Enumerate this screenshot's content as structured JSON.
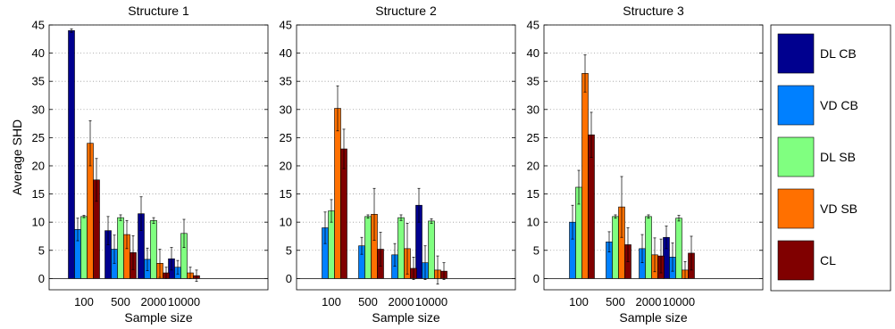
{
  "chart_data": {
    "type": "bar",
    "ylabel": "Average SHD",
    "xlabel": "Sample size",
    "ylim": [
      -2,
      45
    ],
    "yticks": [
      0,
      5,
      10,
      15,
      20,
      25,
      30,
      35,
      40,
      45
    ],
    "categories": [
      "100",
      "500",
      "2000",
      "10000"
    ],
    "grid": "horizontal dotted",
    "legend_placement": "right",
    "series": [
      {
        "name": "DL CB",
        "color": "#00008f"
      },
      {
        "name": "VD CB",
        "color": "#0080ff"
      },
      {
        "name": "DL SB",
        "color": "#80ff80"
      },
      {
        "name": "VD SB",
        "color": "#ff7000"
      },
      {
        "name": "CL",
        "color": "#800000"
      }
    ],
    "panels": [
      {
        "title": "Structure 1",
        "values": [
          [
            44,
            8.5,
            11.5,
            3.5
          ],
          [
            8.7,
            5.2,
            3.4,
            2
          ],
          [
            11,
            10.8,
            10.3,
            8
          ],
          [
            24,
            7.8,
            2.7,
            1
          ],
          [
            17.5,
            4.6,
            1,
            0.5
          ]
        ],
        "errors": [
          [
            0.3,
            2.5,
            3.0,
            2.0
          ],
          [
            2.0,
            2.5,
            2.0,
            1.2
          ],
          [
            0.2,
            0.5,
            0.5,
            2.5
          ],
          [
            4.0,
            2.5,
            2.5,
            1.0
          ],
          [
            3.8,
            3.0,
            1.0,
            1.0
          ]
        ]
      },
      {
        "title": "Structure 2",
        "values": [
          [
            0,
            0,
            0,
            13
          ],
          [
            9,
            5.8,
            4.2,
            2.8
          ],
          [
            12,
            11,
            10.8,
            10.2
          ],
          [
            30.2,
            11.4,
            5.3,
            1.5
          ],
          [
            23,
            5.2,
            1.8,
            1.3
          ]
        ],
        "errors": [
          [
            0,
            0,
            0,
            3.0
          ],
          [
            2.8,
            1.5,
            2.0,
            3.0
          ],
          [
            2.0,
            0.3,
            0.5,
            0.4
          ],
          [
            4.0,
            4.6,
            4.5,
            2.5
          ],
          [
            3.5,
            3.0,
            2.0,
            1.5
          ]
        ]
      },
      {
        "title": "Structure 3",
        "values": [
          [
            0,
            0,
            0,
            7.3
          ],
          [
            10,
            6.5,
            5.3,
            3.8
          ],
          [
            16.2,
            11,
            11,
            10.7
          ],
          [
            36.4,
            12.7,
            4.2,
            1.5
          ],
          [
            25.5,
            6,
            4,
            4.5
          ]
        ],
        "errors": [
          [
            0,
            0,
            0,
            2.0
          ],
          [
            3.0,
            1.8,
            2.5,
            2.5
          ],
          [
            3.0,
            0.3,
            0.3,
            0.5
          ],
          [
            3.3,
            5.4,
            3.0,
            1.5
          ],
          [
            4.0,
            3.0,
            3.0,
            3.0
          ]
        ]
      }
    ]
  }
}
